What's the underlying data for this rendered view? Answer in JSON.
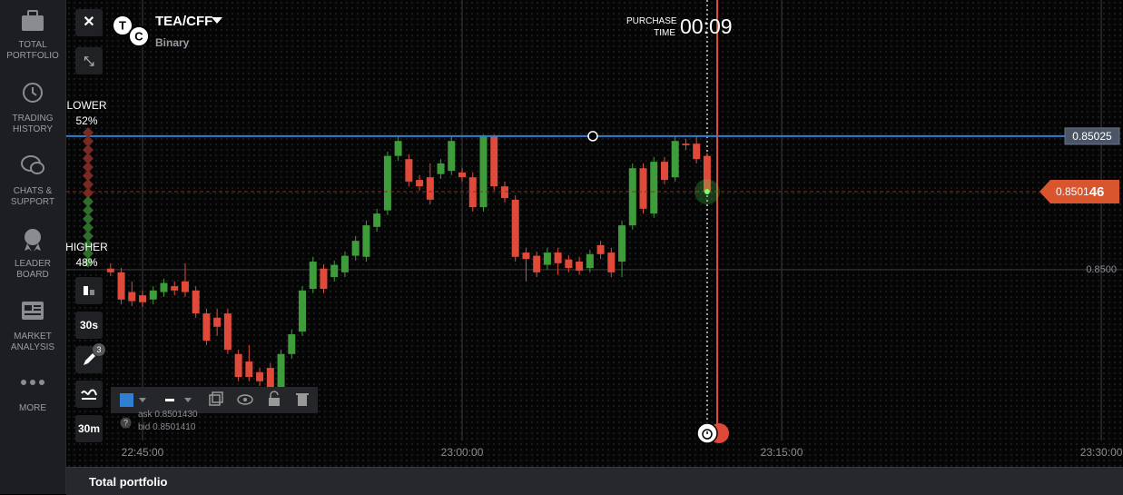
{
  "sidebar": [
    {
      "label": "TOTAL PORTFOLIO"
    },
    {
      "label": "TRADING HISTORY"
    },
    {
      "label": "CHATS & SUPPORT"
    },
    {
      "label": "LEADER BOARD"
    },
    {
      "label": "MARKET ANALYSIS"
    },
    {
      "label": "MORE"
    }
  ],
  "header": {
    "asset": "TEA/CFF",
    "mode": "Binary",
    "purchase_label": "PURCHASE TIME",
    "timer": "00:09"
  },
  "sentiment": {
    "lower_label": "LOWER",
    "lower_value": "52%",
    "higher_label": "HIGHER",
    "higher_value": "48%"
  },
  "controls": {
    "candle_time": "30s",
    "drawings_count": "3",
    "period": "30m"
  },
  "quote": {
    "ask": "ask 0.8501430",
    "bid": "bid 0.8501410"
  },
  "footer": {
    "title": "Total portfolio"
  },
  "chart_data": {
    "type": "candlestick",
    "x": [
      1363.5,
      1364,
      1364.5,
      1365,
      1365.5,
      1366,
      1366.5,
      1367,
      1367.5,
      1368,
      1368.5,
      1369,
      1369.5,
      1370,
      1370.5,
      1371,
      1371.5,
      1372,
      1372.5,
      1373,
      1373.5,
      1374,
      1374.5,
      1375,
      1375.5,
      1376,
      1376.5,
      1377,
      1377.5,
      1378,
      1378.5,
      1379,
      1379.5,
      1380,
      1380.5,
      1381,
      1381.5,
      1382,
      1382.5,
      1383,
      1383.5,
      1384,
      1384.5,
      1385,
      1385.5,
      1386,
      1386.5,
      1387,
      1387.5,
      1388,
      1388.5,
      1389,
      1389.5,
      1390,
      1390.5,
      1391,
      1391.5
    ],
    "open": [
      0.850002,
      0.849995,
      0.849958,
      0.849952,
      0.849944,
      0.849958,
      0.849969,
      0.849978,
      0.849961,
      0.849918,
      0.84991,
      0.849918,
      0.849842,
      0.849828,
      0.849808,
      0.849816,
      0.849757,
      0.849842,
      0.849884,
      0.849964,
      0.850002,
      0.849986,
      0.849995,
      0.850026,
      0.850024,
      0.85008,
      0.850111,
      0.850213,
      0.850207,
      0.850168,
      0.850173,
      0.850179,
      0.850185,
      0.850182,
      0.850173,
      0.850117,
      0.85025,
      0.850156,
      0.850131,
      0.850032,
      0.850026,
      0.850009,
      0.850032,
      0.850019,
      0.850015,
      0.850003,
      0.850046,
      0.850032,
      0.850015,
      0.850083,
      0.85019,
      0.850105,
      0.850202,
      0.850173,
      0.850236,
      0.850236,
      0.850213
    ],
    "high": [
      0.850012,
      0.850003,
      0.849978,
      0.849961,
      0.849969,
      0.849983,
      0.849978,
      0.850012,
      0.849969,
      0.849927,
      0.849927,
      0.849927,
      0.84985,
      0.849859,
      0.849816,
      0.849825,
      0.84985,
      0.849888,
      0.849969,
      0.850024,
      0.85001,
      0.850017,
      0.850034,
      0.850063,
      0.850092,
      0.850114,
      0.850221,
      0.85025,
      0.850216,
      0.850177,
      0.850199,
      0.850207,
      0.85025,
      0.85019,
      0.850182,
      0.850253,
      0.850253,
      0.850165,
      0.850139,
      0.850041,
      0.850034,
      0.850041,
      0.850041,
      0.850027,
      0.850024,
      0.850037,
      0.850054,
      0.850041,
      0.850092,
      0.850199,
      0.850199,
      0.850211,
      0.850211,
      0.85025,
      0.850245,
      0.85025,
      0.850219
    ],
    "low": [
      0.849988,
      0.849935,
      0.849932,
      0.84993,
      0.849935,
      0.849949,
      0.849952,
      0.849949,
      0.84991,
      0.849859,
      0.849876,
      0.849842,
      0.849791,
      0.849791,
      0.849782,
      0.849748,
      0.849743,
      0.849833,
      0.849876,
      0.849956,
      0.849956,
      0.849978,
      0.849986,
      0.850017,
      0.850015,
      0.850071,
      0.850102,
      0.850204,
      0.850156,
      0.850148,
      0.850122,
      0.85017,
      0.850177,
      0.850165,
      0.850109,
      0.850109,
      0.850148,
      0.850126,
      0.850015,
      0.849978,
      0.849986,
      0.85,
      0.84999,
      0.849995,
      0.84999,
      0.849995,
      0.85002,
      0.849986,
      0.849986,
      0.850075,
      0.850105,
      0.850097,
      0.85016,
      0.850165,
      0.850224,
      0.850199,
      0.850141
    ],
    "close": [
      0.849995,
      0.849944,
      0.849941,
      0.849939,
      0.849961,
      0.849975,
      0.849961,
      0.849958,
      0.849918,
      0.849867,
      0.849893,
      0.84985,
      0.849799,
      0.849799,
      0.849791,
      0.849757,
      0.849842,
      0.849879,
      0.849961,
      0.850015,
      0.849964,
      0.850009,
      0.850026,
      0.850054,
      0.850083,
      0.850105,
      0.850213,
      0.850241,
      0.850165,
      0.850156,
      0.850131,
      0.850199,
      0.850241,
      0.850173,
      0.850117,
      0.85025,
      0.850156,
      0.850134,
      0.850024,
      0.85002,
      0.849995,
      0.850032,
      0.850012,
      0.850003,
      0.849998,
      0.850029,
      0.850029,
      0.849995,
      0.850083,
      0.85019,
      0.850114,
      0.850202,
      0.850168,
      0.850241,
      0.850233,
      0.850207,
      0.850146
    ],
    "up_color": "#3e9d3a",
    "down_color": "#e04a3a",
    "xlim": [
      1361.42,
      1411.02
    ],
    "xticks": [
      {
        "value": 1365,
        "label": "22:45:00"
      },
      {
        "value": 1380,
        "label": "23:00:00"
      },
      {
        "value": 1395,
        "label": "23:15:00"
      },
      {
        "value": 1410,
        "label": "23:30:00"
      }
    ],
    "ylim": [
      0.84968,
      0.850505
    ],
    "yticks": [
      {
        "value": 0.85,
        "label": "0.8500"
      }
    ],
    "strike": 0.85025,
    "current_price": 0.850146,
    "grid": true
  }
}
